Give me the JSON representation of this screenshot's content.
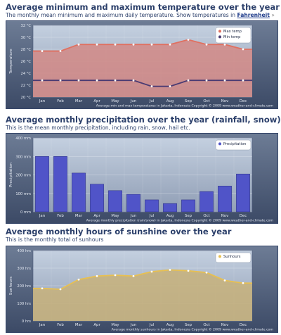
{
  "sections": [
    {
      "title": "Average minimum and maximum temperature over the year",
      "subtitle_text": "The monthly mean minimum and maximum daily temperature. Show temperatures in",
      "subtitle_link": "Fahrenheit",
      "subtitle_arrow": "»"
    },
    {
      "title": "Average monthly precipitation over the year (rainfall, snow)",
      "subtitle_text": "This is the mean monthly precipitation, including rain, snow, hail etc."
    },
    {
      "title": "Average monthly hours of sunshine over the year",
      "subtitle_text": "This is the monthly total of sunhours"
    }
  ],
  "colors": {
    "max": "#e07060",
    "min": "#4a3b73",
    "precip": "#5054c8",
    "sun": "#e8c050",
    "fill_temp": "#d48a86",
    "fill_sun": "#c8b27a"
  },
  "chart_data": [
    {
      "type": "area",
      "categories": [
        "Jan",
        "Feb",
        "Mar",
        "Apr",
        "May",
        "Jun",
        "Jul",
        "Aug",
        "Sep",
        "Oct",
        "Nov",
        "Dec"
      ],
      "series": [
        {
          "name": "Max temp",
          "values": [
            27.7,
            27.7,
            28.8,
            28.8,
            28.8,
            28.8,
            28.8,
            28.8,
            29.6,
            28.8,
            28.8,
            28.0
          ]
        },
        {
          "name": "Min temp",
          "values": [
            22.8,
            22.8,
            22.8,
            22.8,
            22.8,
            22.8,
            21.8,
            21.8,
            22.8,
            22.8,
            22.8,
            22.8
          ]
        }
      ],
      "ylabel": "Temperature",
      "ylim": [
        20,
        32
      ],
      "yticks": [
        "20 °C",
        "22 °C",
        "24 °C",
        "26 °C",
        "28 °C",
        "30 °C",
        "32 °C"
      ],
      "caption": "Average min and max temperatures in Jakarta, Indonesia    Copyright © 2009 www.weather-and-climate.com",
      "legend_position": "top-right",
      "grid": true
    },
    {
      "type": "bar",
      "categories": [
        "Jan",
        "Feb",
        "Mar",
        "Apr",
        "May",
        "Jun",
        "Jul",
        "Aug",
        "Sep",
        "Oct",
        "Nov",
        "Dec"
      ],
      "series": [
        {
          "name": "Precipitation",
          "values": [
            300,
            300,
            210,
            150,
            115,
            95,
            65,
            45,
            65,
            110,
            140,
            205
          ]
        }
      ],
      "ylabel": "Precipitation",
      "ylim": [
        0,
        400
      ],
      "yticks": [
        "0 mm",
        "100 mm",
        "200 mm",
        "300 mm",
        "400 mm"
      ],
      "caption": "Average monthly precipitation (rain/snow) in Jakarta, Indonesia    Copyright © 2009 www.weather-and-climate.com",
      "legend_position": "top-right",
      "grid": true
    },
    {
      "type": "area",
      "categories": [
        "Jan",
        "Feb",
        "Mar",
        "Apr",
        "May",
        "Jun",
        "Jul",
        "Aug",
        "Sep",
        "Oct",
        "Nov",
        "Dec"
      ],
      "series": [
        {
          "name": "Sunhours",
          "values": [
            185,
            180,
            235,
            255,
            260,
            255,
            280,
            290,
            285,
            275,
            230,
            215
          ]
        }
      ],
      "ylabel": "Sunhours",
      "ylim": [
        0,
        400
      ],
      "yticks": [
        "0 hrs",
        "100 hrs",
        "200 hrs",
        "300 hrs",
        "400 hrs"
      ],
      "caption": "Average monthly sunhours in Jakarta, Indonesia    Copyright © 2009 www.weather-and-climate.com",
      "legend_position": "top-right",
      "grid": true
    }
  ]
}
